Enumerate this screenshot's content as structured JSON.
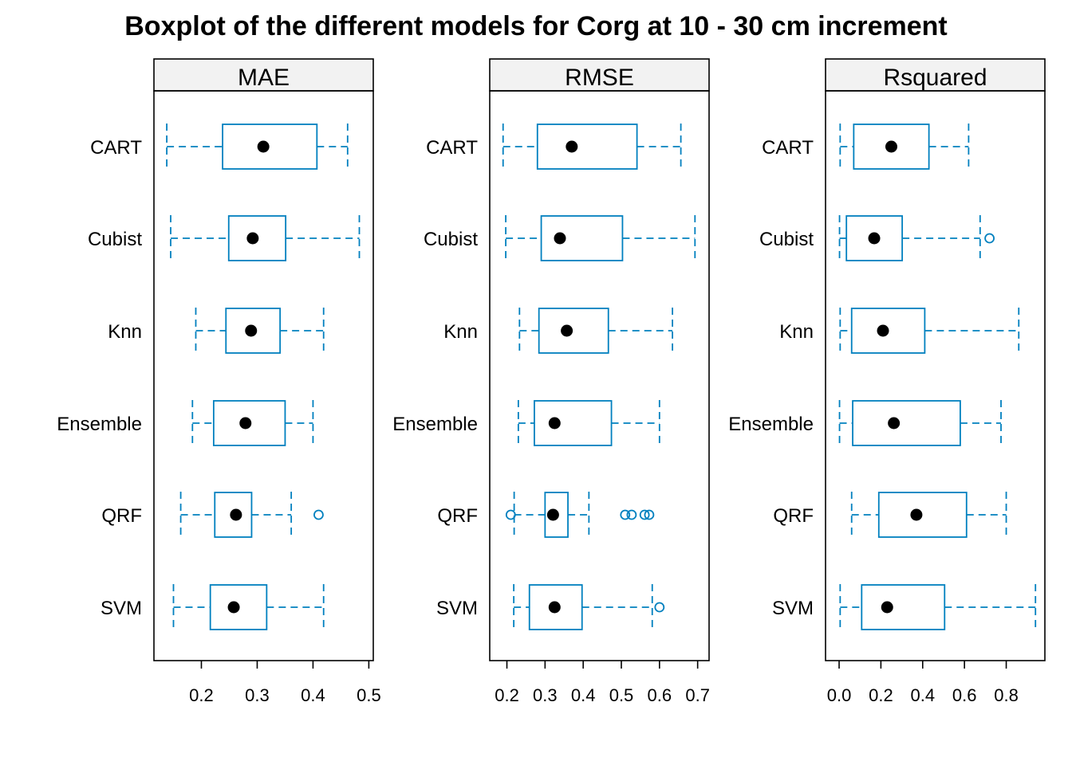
{
  "chart_data": {
    "type": "boxplot",
    "title": "Boxplot of the different models for Corg at 10 - 30 cm increment",
    "categories": [
      "CART",
      "Cubist",
      "Knn",
      "Ensemble",
      "QRF",
      "SVM"
    ],
    "colors": {
      "box": "#0080bf",
      "median": "#000000",
      "strip": "#f2f2f2"
    },
    "panels": [
      {
        "name": "MAE",
        "xlim": [
          0.115,
          0.508
        ],
        "ticks": [
          0.2,
          0.3,
          0.4,
          0.5
        ],
        "tick_labels": [
          "0.2",
          "0.3",
          "0.4",
          "0.5"
        ],
        "boxes": [
          {
            "model": "CART",
            "whisker_low": 0.138,
            "q1": 0.238,
            "median": 0.311,
            "q3": 0.407,
            "whisker_high": 0.462,
            "outliers": []
          },
          {
            "model": "Cubist",
            "whisker_low": 0.145,
            "q1": 0.249,
            "median": 0.292,
            "q3": 0.351,
            "whisker_high": 0.483,
            "outliers": []
          },
          {
            "model": "Knn",
            "whisker_low": 0.19,
            "q1": 0.244,
            "median": 0.289,
            "q3": 0.341,
            "whisker_high": 0.419,
            "outliers": []
          },
          {
            "model": "Ensemble",
            "whisker_low": 0.184,
            "q1": 0.222,
            "median": 0.279,
            "q3": 0.35,
            "whisker_high": 0.4,
            "outliers": []
          },
          {
            "model": "QRF",
            "whisker_low": 0.163,
            "q1": 0.224,
            "median": 0.262,
            "q3": 0.29,
            "whisker_high": 0.361,
            "outliers": [
              0.41
            ]
          },
          {
            "model": "SVM",
            "whisker_low": 0.15,
            "q1": 0.216,
            "median": 0.258,
            "q3": 0.317,
            "whisker_high": 0.419,
            "outliers": []
          }
        ]
      },
      {
        "name": "RMSE",
        "xlim": [
          0.155,
          0.73
        ],
        "ticks": [
          0.2,
          0.3,
          0.4,
          0.5,
          0.6,
          0.7
        ],
        "tick_labels": [
          "0.2",
          "0.3",
          "0.4",
          "0.5",
          "0.6",
          "0.7"
        ],
        "boxes": [
          {
            "model": "CART",
            "whisker_low": 0.19,
            "q1": 0.28,
            "median": 0.37,
            "q3": 0.541,
            "whisker_high": 0.656,
            "outliers": []
          },
          {
            "model": "Cubist",
            "whisker_low": 0.197,
            "q1": 0.29,
            "median": 0.339,
            "q3": 0.503,
            "whisker_high": 0.693,
            "outliers": []
          },
          {
            "model": "Knn",
            "whisker_low": 0.233,
            "q1": 0.284,
            "median": 0.357,
            "q3": 0.466,
            "whisker_high": 0.634,
            "outliers": []
          },
          {
            "model": "Ensemble",
            "whisker_low": 0.23,
            "q1": 0.272,
            "median": 0.325,
            "q3": 0.474,
            "whisker_high": 0.6,
            "outliers": []
          },
          {
            "model": "QRF",
            "whisker_low": 0.219,
            "q1": 0.3,
            "median": 0.321,
            "q3": 0.36,
            "whisker_high": 0.415,
            "outliers": [
              0.21,
              0.51,
              0.527,
              0.561,
              0.573
            ]
          },
          {
            "model": "SVM",
            "whisker_low": 0.218,
            "q1": 0.259,
            "median": 0.325,
            "q3": 0.397,
            "whisker_high": 0.581,
            "outliers": [
              0.6
            ]
          }
        ]
      },
      {
        "name": "Rsquared",
        "xlim": [
          -0.065,
          0.985
        ],
        "ticks": [
          0.0,
          0.2,
          0.4,
          0.6,
          0.8
        ],
        "tick_labels": [
          "0.0",
          "0.2",
          "0.4",
          "0.6",
          "0.8"
        ],
        "boxes": [
          {
            "model": "CART",
            "whisker_low": 0.005,
            "q1": 0.07,
            "median": 0.25,
            "q3": 0.43,
            "whisker_high": 0.62,
            "outliers": []
          },
          {
            "model": "Cubist",
            "whisker_low": 0.002,
            "q1": 0.035,
            "median": 0.168,
            "q3": 0.302,
            "whisker_high": 0.675,
            "outliers": [
              0.72
            ]
          },
          {
            "model": "Knn",
            "whisker_low": 0.005,
            "q1": 0.06,
            "median": 0.21,
            "q3": 0.41,
            "whisker_high": 0.86,
            "outliers": []
          },
          {
            "model": "Ensemble",
            "whisker_low": 0.002,
            "q1": 0.065,
            "median": 0.262,
            "q3": 0.58,
            "whisker_high": 0.775,
            "outliers": []
          },
          {
            "model": "QRF",
            "whisker_low": 0.06,
            "q1": 0.19,
            "median": 0.37,
            "q3": 0.61,
            "whisker_high": 0.8,
            "outliers": []
          },
          {
            "model": "SVM",
            "whisker_low": 0.005,
            "q1": 0.108,
            "median": 0.23,
            "q3": 0.505,
            "whisker_high": 0.94,
            "outliers": []
          }
        ]
      }
    ]
  }
}
